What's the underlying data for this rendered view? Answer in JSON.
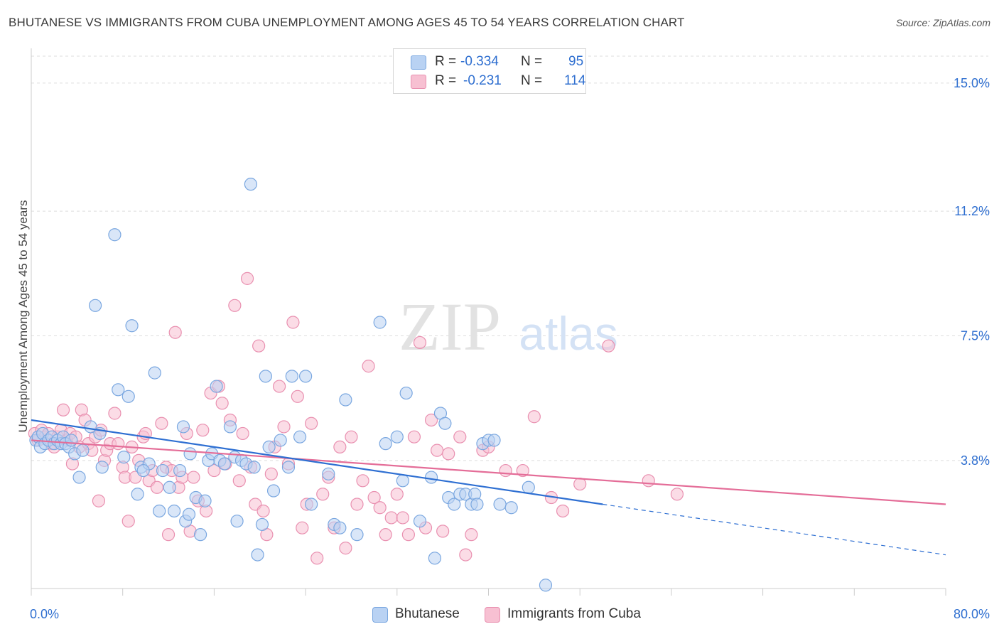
{
  "title": "BHUTANESE VS IMMIGRANTS FROM CUBA UNEMPLOYMENT AMONG AGES 45 TO 54 YEARS CORRELATION CHART",
  "source": "Source: ZipAtlas.com",
  "watermark": {
    "zip": "ZIP",
    "atlas": "atlas"
  },
  "legend_top": [
    {
      "r_label": "R =",
      "r_value": "-0.334",
      "n_label": "N =",
      "n_value": "95"
    },
    {
      "r_label": "R =",
      "r_value": "-0.231",
      "n_label": "N =",
      "n_value": "114"
    }
  ],
  "colors": {
    "blue_fill": "#b9d2f3",
    "blue_stroke": "#7aa7e0",
    "blue_line": "#2e6fd2",
    "pink_fill": "#f7c0d2",
    "pink_stroke": "#e990b0",
    "pink_line": "#e46d98",
    "axis_value": "#2f6fd0",
    "grid": "#dddddd"
  },
  "chart_data": {
    "type": "scatter",
    "title": "BHUTANESE VS IMMIGRANTS FROM CUBA UNEMPLOYMENT AMONG AGES 45 TO 54 YEARS CORRELATION CHART",
    "xlabel": "",
    "ylabel": "Unemployment Among Ages 45 to 54 years",
    "xlim": [
      0,
      80
    ],
    "ylim": [
      0,
      15.8
    ],
    "x_tick_labels": {
      "min": "0.0%",
      "max": "80.0%"
    },
    "y_ticks": [
      3.8,
      7.5,
      11.2,
      15.0
    ],
    "y_tick_labels": [
      "3.8%",
      "7.5%",
      "11.2%",
      "15.0%"
    ],
    "legend_position": "bottom",
    "series": [
      {
        "name": "Bhutanese",
        "r": -0.334,
        "n": 95,
        "trend": {
          "x0": 0,
          "y0": 5.0,
          "x1": 50,
          "y1": 2.5,
          "dash_to_x": 80,
          "dash_to_y": 1.0
        },
        "points": [
          [
            0.4,
            4.4
          ],
          [
            0.6,
            4.5
          ],
          [
            0.8,
            4.2
          ],
          [
            1.0,
            4.6
          ],
          [
            1.2,
            4.3
          ],
          [
            1.5,
            4.4
          ],
          [
            1.8,
            4.5
          ],
          [
            2.0,
            4.3
          ],
          [
            2.3,
            4.4
          ],
          [
            2.6,
            4.3
          ],
          [
            2.8,
            4.5
          ],
          [
            3.0,
            4.3
          ],
          [
            3.3,
            4.2
          ],
          [
            3.5,
            4.4
          ],
          [
            3.8,
            4.0
          ],
          [
            4.2,
            3.3
          ],
          [
            4.5,
            4.1
          ],
          [
            5.2,
            4.8
          ],
          [
            5.6,
            8.4
          ],
          [
            6.0,
            4.6
          ],
          [
            6.2,
            3.6
          ],
          [
            7.3,
            10.5
          ],
          [
            7.6,
            5.9
          ],
          [
            8.1,
            3.9
          ],
          [
            8.5,
            5.7
          ],
          [
            8.8,
            7.8
          ],
          [
            9.3,
            2.8
          ],
          [
            9.6,
            3.6
          ],
          [
            10.3,
            3.7
          ],
          [
            10.8,
            6.4
          ],
          [
            11.2,
            2.3
          ],
          [
            11.5,
            3.5
          ],
          [
            12.1,
            3.0
          ],
          [
            12.5,
            2.3
          ],
          [
            13.0,
            3.5
          ],
          [
            13.3,
            4.8
          ],
          [
            13.5,
            2.0
          ],
          [
            13.9,
            4.0
          ],
          [
            14.4,
            2.7
          ],
          [
            14.8,
            1.6
          ],
          [
            15.2,
            2.6
          ],
          [
            15.5,
            3.8
          ],
          [
            15.8,
            4.0
          ],
          [
            16.2,
            6.0
          ],
          [
            16.5,
            3.8
          ],
          [
            16.9,
            3.7
          ],
          [
            17.4,
            4.8
          ],
          [
            17.8,
            3.9
          ],
          [
            18.0,
            2.0
          ],
          [
            18.4,
            3.8
          ],
          [
            18.8,
            3.7
          ],
          [
            19.2,
            12.0
          ],
          [
            19.5,
            3.6
          ],
          [
            19.8,
            1.0
          ],
          [
            20.2,
            1.9
          ],
          [
            20.5,
            6.3
          ],
          [
            20.8,
            4.2
          ],
          [
            21.2,
            2.9
          ],
          [
            21.8,
            4.4
          ],
          [
            22.5,
            3.6
          ],
          [
            22.8,
            6.3
          ],
          [
            23.5,
            4.5
          ],
          [
            24.0,
            6.3
          ],
          [
            24.5,
            2.5
          ],
          [
            26.0,
            3.4
          ],
          [
            26.5,
            1.9
          ],
          [
            27.0,
            1.8
          ],
          [
            28.5,
            1.6
          ],
          [
            30.5,
            7.9
          ],
          [
            31.0,
            4.3
          ],
          [
            32.0,
            4.5
          ],
          [
            32.5,
            3.2
          ],
          [
            32.8,
            5.8
          ],
          [
            34.0,
            2.0
          ],
          [
            35.0,
            3.3
          ],
          [
            35.3,
            0.9
          ],
          [
            35.8,
            5.2
          ],
          [
            36.2,
            4.9
          ],
          [
            36.5,
            2.7
          ],
          [
            37.0,
            2.5
          ],
          [
            37.5,
            2.8
          ],
          [
            38.0,
            2.8
          ],
          [
            38.5,
            2.5
          ],
          [
            38.8,
            2.8
          ],
          [
            39.0,
            2.5
          ],
          [
            39.5,
            4.3
          ],
          [
            40.0,
            4.4
          ],
          [
            40.5,
            4.4
          ],
          [
            41.0,
            2.5
          ],
          [
            42.0,
            2.4
          ],
          [
            43.5,
            3.0
          ],
          [
            45.0,
            0.1
          ],
          [
            13.8,
            2.2
          ],
          [
            9.8,
            3.5
          ],
          [
            27.5,
            5.6
          ]
        ]
      },
      {
        "name": "Immigrants from Cuba",
        "r": -0.231,
        "n": 114,
        "trend": {
          "x0": 0,
          "y0": 4.4,
          "x1": 80,
          "y1": 2.5
        },
        "points": [
          [
            0.3,
            4.6
          ],
          [
            0.6,
            4.4
          ],
          [
            0.9,
            4.7
          ],
          [
            1.2,
            4.5
          ],
          [
            1.5,
            4.6
          ],
          [
            1.8,
            4.3
          ],
          [
            2.0,
            4.2
          ],
          [
            2.3,
            4.5
          ],
          [
            2.6,
            4.7
          ],
          [
            2.8,
            5.3
          ],
          [
            3.1,
            4.4
          ],
          [
            3.4,
            4.6
          ],
          [
            3.6,
            3.7
          ],
          [
            3.9,
            4.5
          ],
          [
            4.2,
            4.2
          ],
          [
            4.4,
            5.3
          ],
          [
            4.7,
            5.0
          ],
          [
            5.0,
            4.3
          ],
          [
            5.3,
            4.1
          ],
          [
            5.6,
            4.5
          ],
          [
            5.9,
            2.6
          ],
          [
            6.1,
            4.7
          ],
          [
            6.4,
            3.8
          ],
          [
            6.6,
            4.1
          ],
          [
            6.9,
            4.3
          ],
          [
            7.3,
            5.2
          ],
          [
            7.6,
            4.3
          ],
          [
            8.0,
            3.6
          ],
          [
            8.2,
            3.3
          ],
          [
            8.5,
            2.0
          ],
          [
            8.8,
            4.2
          ],
          [
            9.1,
            3.3
          ],
          [
            9.4,
            3.8
          ],
          [
            9.8,
            4.5
          ],
          [
            10.0,
            4.6
          ],
          [
            10.3,
            3.2
          ],
          [
            10.6,
            3.5
          ],
          [
            11.0,
            3.0
          ],
          [
            11.4,
            4.9
          ],
          [
            11.8,
            3.6
          ],
          [
            12.0,
            1.6
          ],
          [
            12.3,
            3.5
          ],
          [
            12.6,
            7.6
          ],
          [
            12.9,
            3.0
          ],
          [
            13.2,
            3.3
          ],
          [
            13.6,
            4.6
          ],
          [
            13.9,
            1.7
          ],
          [
            14.2,
            3.3
          ],
          [
            14.6,
            2.6
          ],
          [
            15.0,
            4.7
          ],
          [
            15.3,
            2.3
          ],
          [
            15.7,
            5.8
          ],
          [
            16.0,
            3.5
          ],
          [
            16.4,
            6.0
          ],
          [
            16.7,
            5.5
          ],
          [
            17.0,
            3.7
          ],
          [
            17.4,
            5.0
          ],
          [
            17.8,
            8.4
          ],
          [
            18.2,
            3.2
          ],
          [
            18.5,
            4.6
          ],
          [
            18.9,
            9.2
          ],
          [
            19.2,
            3.6
          ],
          [
            19.6,
            2.5
          ],
          [
            19.9,
            7.2
          ],
          [
            20.3,
            2.3
          ],
          [
            20.6,
            1.6
          ],
          [
            21.0,
            3.4
          ],
          [
            21.3,
            4.2
          ],
          [
            21.7,
            6.0
          ],
          [
            22.1,
            4.8
          ],
          [
            22.5,
            3.7
          ],
          [
            22.9,
            7.9
          ],
          [
            23.3,
            5.7
          ],
          [
            23.7,
            1.8
          ],
          [
            24.1,
            2.5
          ],
          [
            24.5,
            4.9
          ],
          [
            25.0,
            0.9
          ],
          [
            25.5,
            2.8
          ],
          [
            26.0,
            3.3
          ],
          [
            26.5,
            1.8
          ],
          [
            27.0,
            4.2
          ],
          [
            27.5,
            1.2
          ],
          [
            28.0,
            4.5
          ],
          [
            28.5,
            2.5
          ],
          [
            29.0,
            3.2
          ],
          [
            29.5,
            6.6
          ],
          [
            30.0,
            2.7
          ],
          [
            30.5,
            2.4
          ],
          [
            31.0,
            1.6
          ],
          [
            31.5,
            2.1
          ],
          [
            32.0,
            2.8
          ],
          [
            32.5,
            2.1
          ],
          [
            33.0,
            1.6
          ],
          [
            33.5,
            4.5
          ],
          [
            34.0,
            7.3
          ],
          [
            34.5,
            1.8
          ],
          [
            35.0,
            5.0
          ],
          [
            35.5,
            4.1
          ],
          [
            36.0,
            1.7
          ],
          [
            36.5,
            4.0
          ],
          [
            37.5,
            4.5
          ],
          [
            38.0,
            1.0
          ],
          [
            38.5,
            1.6
          ],
          [
            39.5,
            4.1
          ],
          [
            40.0,
            4.2
          ],
          [
            41.5,
            3.5
          ],
          [
            43.0,
            3.5
          ],
          [
            44.0,
            5.1
          ],
          [
            45.5,
            2.7
          ],
          [
            46.5,
            2.3
          ],
          [
            48.0,
            3.1
          ],
          [
            50.5,
            7.2
          ],
          [
            54.0,
            3.2
          ],
          [
            56.5,
            2.8
          ]
        ]
      }
    ]
  }
}
